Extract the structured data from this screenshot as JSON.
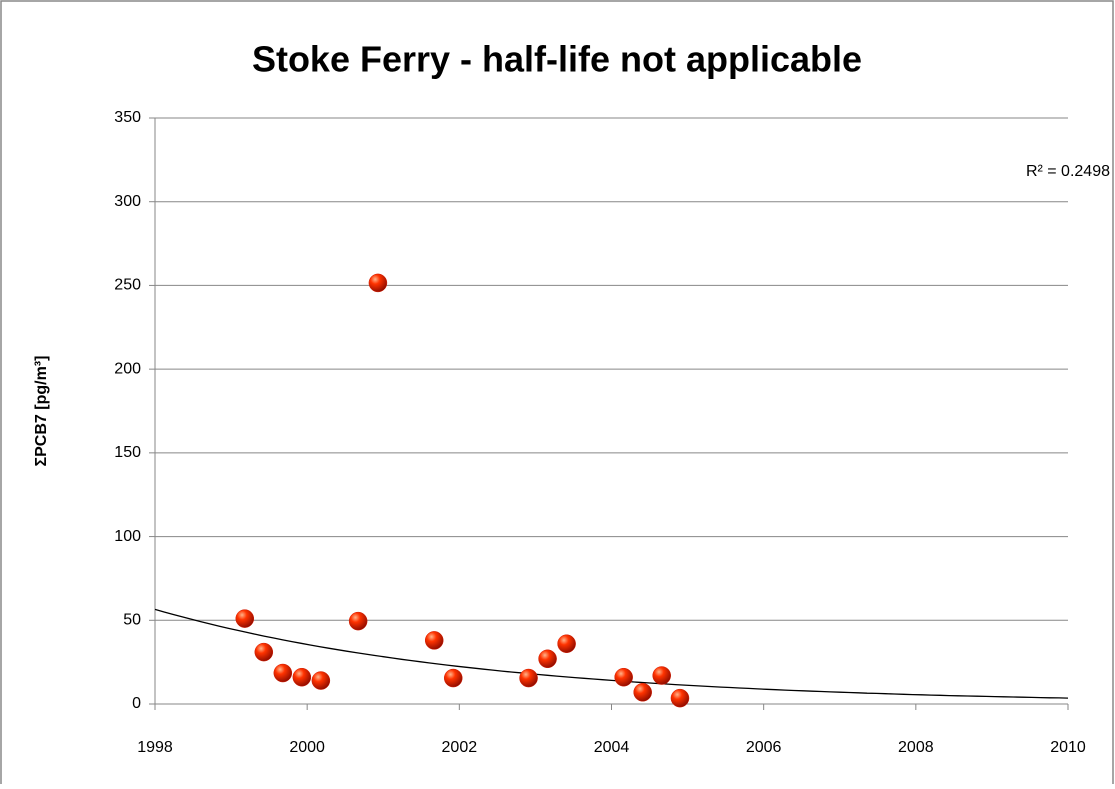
{
  "chart_data": {
    "type": "scatter",
    "title": "Stoke Ferry - half-life not applicable",
    "y_label": "ΣPCB7 [pg/m³]",
    "annotation": "R² = 0.2498",
    "series": [
      {
        "color": "#d41a00",
        "x": [
          1999.18,
          1999.43,
          1999.68,
          1999.93,
          2000.18,
          2000.67,
          2000.93,
          2001.67,
          2001.92,
          2002.91,
          2003.16,
          2003.41,
          2004.16,
          2004.41,
          2004.66,
          2004.9
        ],
        "values": [
          51,
          31,
          18.5,
          16,
          14,
          49.5,
          251.5,
          38,
          15.5,
          15.5,
          27,
          36,
          16,
          7,
          17,
          3.5
        ]
      }
    ],
    "trendline": {
      "kind": "exponential",
      "color": "#000000"
    },
    "xlim": [
      1998,
      2010
    ],
    "xticks": [
      1998,
      2000,
      2002,
      2004,
      2006,
      2008,
      2010
    ],
    "ylim": [
      0,
      350
    ],
    "yticks": [
      0,
      50,
      100,
      150,
      200,
      250,
      300,
      350
    ],
    "grid": true
  }
}
